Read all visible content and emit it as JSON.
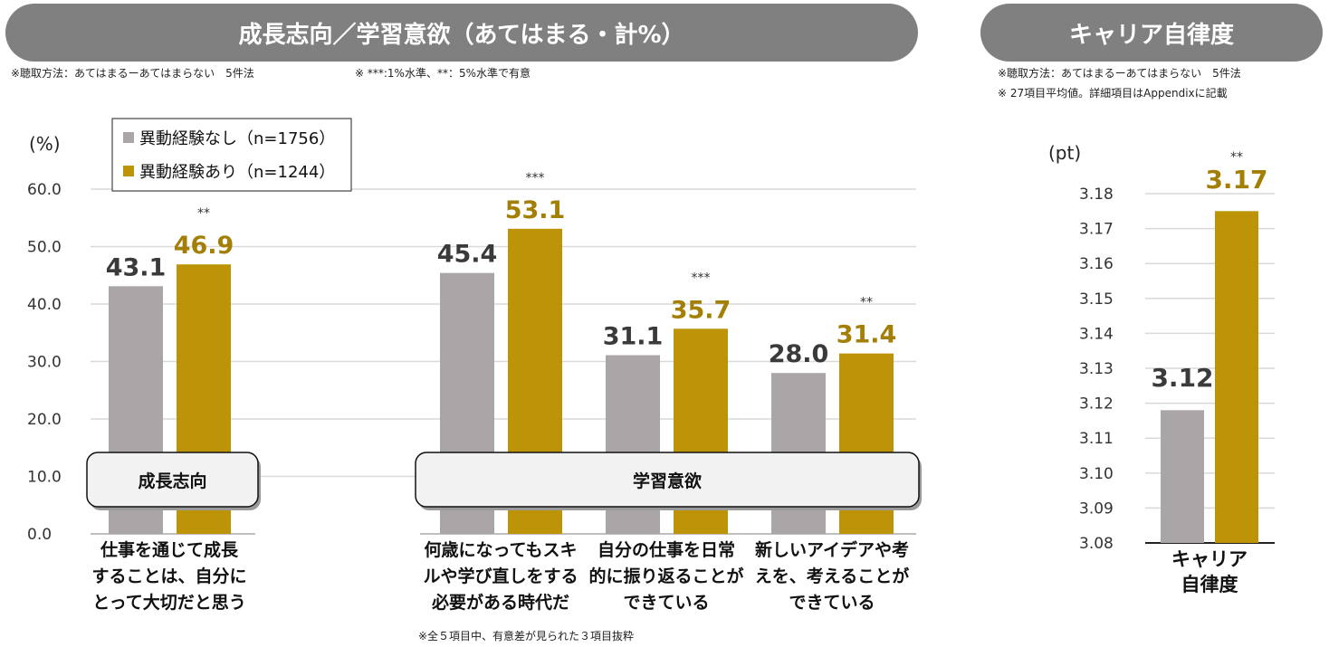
{
  "titles": {
    "left": "成長志向／学習意欲（あてはまる・計%）",
    "right": "キャリア自律度"
  },
  "notes": {
    "left_method": "※聴取方法：あてはまるーあてはまらない　5件法",
    "left_sig": "※ ***:1%水準、**：5%水準で有意",
    "right_method": "※聴取方法：あてはまるーあてはまらない　5件法",
    "right_items": "※ 27項目平均値。詳細項目はAppendixに記載",
    "footnote": "※全５項目中、有意差が見られた３項目抜粋"
  },
  "colors": {
    "no_exp": "#aaa5a6",
    "exp": "#bd9408",
    "exp_text": "#a37f05",
    "gridline": "#d9d9d9",
    "pill": "#808080"
  },
  "chart_data": [
    {
      "type": "bar",
      "ylabel": "(%)",
      "ylim": [
        0,
        60
      ],
      "yticks": [
        "0.0",
        "10.0",
        "20.0",
        "30.0",
        "40.0",
        "50.0",
        "60.0"
      ],
      "legend": {
        "placement": "top-left",
        "entries": [
          "異動経験なし（n=1756）",
          "異動経験あり（n=1244）"
        ]
      },
      "categories": [
        [
          "仕事を通じて成長",
          "することは、自分に",
          "とって大切だと思う"
        ],
        [
          "何歳になってもスキ",
          "ルや学び直しをする",
          "必要がある時代だ"
        ],
        [
          "自分の仕事を日常",
          "的に振り返ることが",
          "できている"
        ],
        [
          "新しいアイデアや考",
          "えを、考えることが",
          "できている"
        ]
      ],
      "series": [
        {
          "name": "異動経験なし（n=1756）",
          "values": [
            43.1,
            45.4,
            31.1,
            28.0
          ],
          "labels": [
            "43.1",
            "45.4",
            "31.1",
            "28.0"
          ]
        },
        {
          "name": "異動経験あり（n=1244）",
          "values": [
            46.9,
            53.1,
            35.7,
            31.4
          ],
          "labels": [
            "46.9",
            "53.1",
            "35.7",
            "31.4"
          ]
        }
      ],
      "significance": [
        "**",
        "***",
        "***",
        "**"
      ],
      "group_labels": [
        "成長志向",
        "学習意欲"
      ]
    },
    {
      "type": "bar",
      "ylabel": "(pt)",
      "ylim": [
        3.08,
        3.18
      ],
      "yticks": [
        "3.08",
        "3.09",
        "3.10",
        "3.11",
        "3.12",
        "3.13",
        "3.14",
        "3.15",
        "3.16",
        "3.17",
        "3.18"
      ],
      "categories": [
        [
          "キャリア",
          "自律度"
        ]
      ],
      "series": [
        {
          "name": "異動経験なし（n=1756）",
          "values": [
            3.118
          ],
          "labels": [
            "3.12"
          ]
        },
        {
          "name": "異動経験あり（n=1244）",
          "values": [
            3.175
          ],
          "labels": [
            "3.17"
          ]
        }
      ],
      "significance": [
        "**"
      ]
    }
  ]
}
